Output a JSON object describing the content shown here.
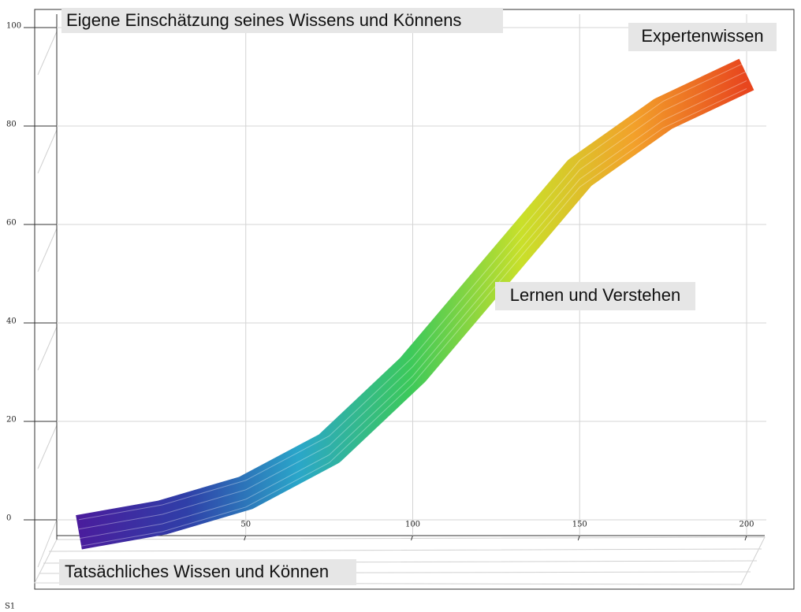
{
  "chart_data": {
    "type": "ribbon",
    "title": "Eigene Einschätzung seines Wissens und Könnens",
    "x_label": "Tatsächliches Wissen und Können",
    "annotations": [
      "Expertenwissen",
      "Lernen und Verstehen"
    ],
    "footer": "S1",
    "x": [
      0,
      25,
      50,
      75,
      100,
      125,
      150,
      175,
      200
    ],
    "series": [
      {
        "values": [
          1,
          4,
          9,
          18,
          34,
          54,
          74,
          86,
          94
        ]
      }
    ],
    "colormap": [
      "#4b1b9c",
      "#2f3fa8",
      "#2aa6c9",
      "#3cc95a",
      "#c9e02a",
      "#f2a12a",
      "#e8461e"
    ],
    "xlim": [
      0,
      200
    ],
    "xticks": [
      50,
      100,
      150,
      200
    ],
    "ylim": [
      0,
      100
    ],
    "yticks": [
      0,
      20,
      40,
      60,
      80,
      100
    ],
    "grid": true
  }
}
